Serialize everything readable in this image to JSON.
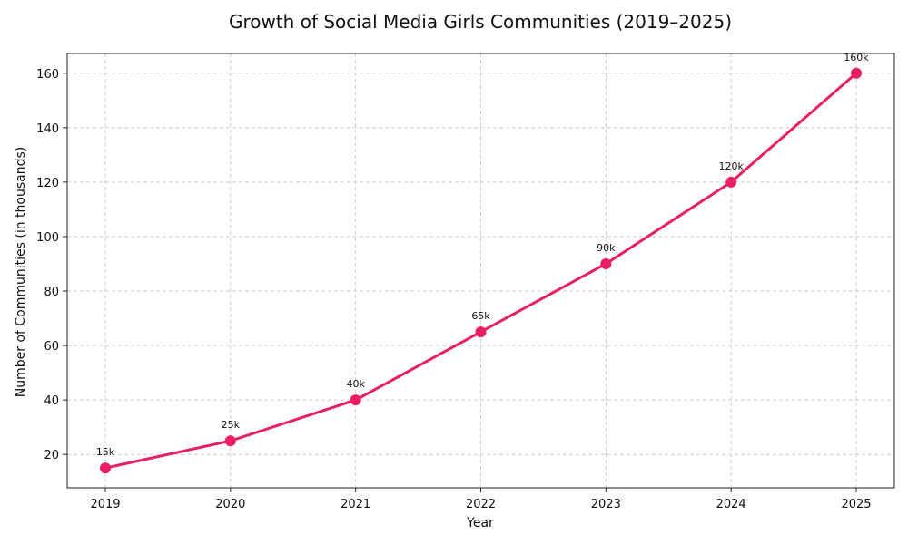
{
  "chart_data": {
    "type": "line",
    "title": "Growth of Social Media Girls Communities (2019–2025)",
    "xlabel": "Year",
    "ylabel": "Number of Communities (in thousands)",
    "categories": [
      "2019",
      "2020",
      "2021",
      "2022",
      "2023",
      "2024",
      "2025"
    ],
    "series": [
      {
        "values": [
          15,
          25,
          40,
          65,
          90,
          120,
          160
        ],
        "labels": [
          "15k",
          "25k",
          "40k",
          "65k",
          "90k",
          "120k",
          "160k"
        ],
        "color": "#e91e63",
        "marker": "circle"
      }
    ],
    "ylim": [
      7.75,
      167.25
    ],
    "yticks": [
      20,
      40,
      60,
      80,
      100,
      120,
      140,
      160
    ],
    "grid": true,
    "grid_style": "dashed",
    "legend": "none"
  }
}
